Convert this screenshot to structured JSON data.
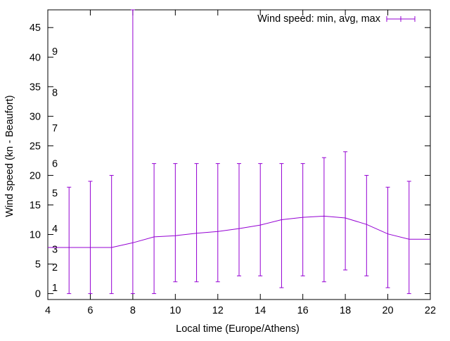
{
  "chart_data": {
    "type": "line",
    "title": "",
    "xlabel": "Local time (Europe/Athens)",
    "ylabel": "Wind speed (kn - Beaufort)",
    "xlim": [
      4,
      22
    ],
    "ylim": [
      -1,
      48
    ],
    "x_ticks": [
      4,
      6,
      8,
      10,
      12,
      14,
      16,
      18,
      20,
      22
    ],
    "y_ticks": [
      0,
      5,
      10,
      15,
      20,
      25,
      30,
      35,
      40,
      45
    ],
    "grid": false,
    "legend_position": "top-right",
    "series": [
      {
        "name": "Wind speed: min, avg, max",
        "color": "#9400d3",
        "style": "line-with-errorbars",
        "x": [
          4,
          5,
          6,
          7,
          8,
          9,
          10,
          11,
          12,
          13,
          14,
          15,
          16,
          17,
          18,
          19,
          20,
          21,
          22
        ],
        "avg": [
          7.8,
          7.8,
          7.8,
          7.8,
          8.6,
          9.6,
          9.8,
          10.2,
          10.5,
          11.0,
          11.6,
          12.5,
          12.9,
          13.1,
          12.8,
          11.7,
          10.1,
          9.2,
          9.2
        ],
        "min": [
          null,
          0,
          0,
          0,
          0,
          0,
          2,
          2,
          2,
          3,
          3,
          1,
          3,
          2,
          4,
          3,
          1,
          0,
          null
        ],
        "max": [
          null,
          18,
          19,
          20,
          48,
          22,
          22,
          22,
          22,
          22,
          22,
          22,
          22,
          23,
          24,
          20,
          18,
          19,
          null
        ]
      }
    ],
    "beaufort_labels": [
      {
        "text": "1",
        "y": 1
      },
      {
        "text": "2",
        "y": 4.5
      },
      {
        "text": "3",
        "y": 7.5
      },
      {
        "text": "4",
        "y": 11
      },
      {
        "text": "5",
        "y": 17
      },
      {
        "text": "6",
        "y": 22
      },
      {
        "text": "7",
        "y": 28
      },
      {
        "text": "8",
        "y": 34
      },
      {
        "text": "9",
        "y": 41
      }
    ]
  }
}
